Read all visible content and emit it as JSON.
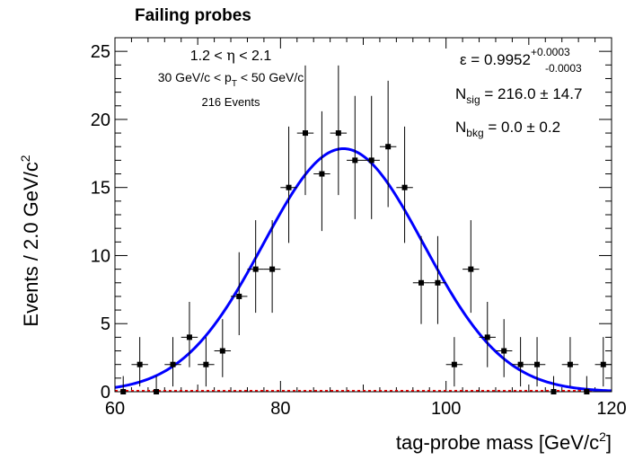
{
  "chart_data": {
    "type": "scatter",
    "title": "Failing probes",
    "xlabel": "tag-probe mass [GeV/c",
    "xlabel_sup": "2",
    "xlabel_end": "]",
    "ylabel": "Events / 2.0 GeV/c",
    "ylabel_sup": "2",
    "xlim": [
      60,
      120
    ],
    "ylim": [
      0,
      26
    ],
    "x_ticks": [
      60,
      80,
      100,
      120
    ],
    "y_ticks": [
      0,
      5,
      10,
      15,
      20,
      25
    ],
    "grid": false,
    "bin_width": 2.0,
    "series": [
      {
        "kind": "data",
        "x": [
          61,
          63,
          65,
          67,
          69,
          71,
          73,
          75,
          77,
          79,
          81,
          83,
          85,
          87,
          89,
          91,
          93,
          95,
          97,
          99,
          101,
          103,
          105,
          107,
          109,
          111,
          113,
          115,
          117,
          119
        ],
        "y": [
          0,
          2,
          0,
          2,
          4,
          2,
          3,
          7,
          9,
          9,
          15,
          19,
          16,
          19,
          17,
          17,
          18,
          15,
          8,
          8,
          2,
          9,
          4,
          3,
          2,
          2,
          0,
          2,
          0,
          2
        ]
      },
      {
        "kind": "fit-total",
        "color": "#0000ff",
        "amplitude": 17.85,
        "mean": 87.6,
        "sigma": 9.7
      },
      {
        "kind": "fit-background",
        "color": "#ff0000",
        "value": 0
      }
    ],
    "annotations": {
      "eta": {
        "pre": "1.2 < ",
        "sym": "η",
        "post": " < 2.1"
      },
      "pt": {
        "pre": "30 GeV/c < p",
        "sub": "T",
        "post": " < 50 GeV/c"
      },
      "events": "216 Events",
      "eff": {
        "pre": "ε = 0.9952",
        "sup": "+0.0003",
        "sub": "-0.0003"
      },
      "nsig": {
        "pre": "N",
        "sub": "sig",
        "post": " = 216.0 ± 14.7"
      },
      "nbkg": {
        "pre": "N",
        "sub": "bkg",
        "post": " = 0.0 ± 0.2"
      }
    }
  }
}
